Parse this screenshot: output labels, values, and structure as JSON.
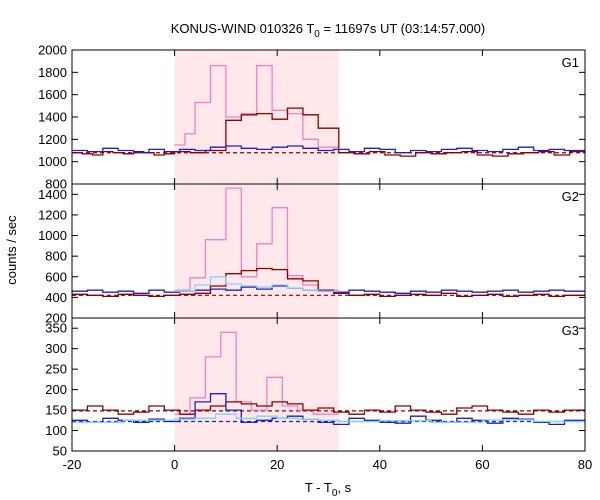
{
  "chart_data": {
    "type": "line",
    "title": {
      "prefix": "KONUS-WIND 010326 T",
      "sub": "0",
      "suffix": " = 11697s UT (03:14:57.000)"
    },
    "xlabel": {
      "prefix": "T - T",
      "sub": "0",
      "suffix": ", s"
    },
    "ylabel": "counts / sec",
    "xlim": [
      -20,
      80
    ],
    "xticks": [
      -20,
      0,
      20,
      40,
      60,
      80
    ],
    "highlight_interval": [
      0,
      32
    ],
    "colors": {
      "G1-G2": "#f080c8",
      "G2-G3": "#00008b",
      "G3-G4": "#c0392b",
      "G1 bg": "#8b0000",
      "G2 bg": "#b22222",
      "G3 bg": "#2020c0",
      "background": "#8b0000",
      "highlight": "#ffe8ea"
    },
    "panels": [
      {
        "label": "G1",
        "ylim": [
          800,
          2000
        ],
        "yticks": [
          800,
          1000,
          1200,
          1400,
          1600,
          1800,
          2000
        ],
        "background_level": 1080,
        "series": [
          {
            "color": "#f080c8",
            "step_edges": [
              0,
              2,
              4,
              7,
              10,
              13,
              16,
              19,
              22,
              25,
              28,
              32
            ],
            "values": [
              1150,
              1250,
              1530,
              1860,
              1400,
              1430,
              1860,
              1460,
              1430,
              1200,
              1130
            ]
          },
          {
            "color": "#8b0000",
            "step_edges": [
              -20,
              -18,
              -16,
              -14,
              -12,
              -10,
              -8,
              -6,
              -4,
              -2,
              0,
              3,
              6,
              10,
              13,
              16,
              19,
              22,
              25,
              28,
              32,
              35,
              38,
              41,
              44,
              47,
              50,
              53,
              56,
              59,
              62,
              65,
              68,
              71,
              74,
              77,
              80
            ],
            "values": [
              1080,
              1070,
              1060,
              1090,
              1080,
              1070,
              1090,
              1080,
              1060,
              1070,
              1090,
              1080,
              1100,
              1370,
              1420,
              1430,
              1380,
              1480,
              1420,
              1300,
              1080,
              1070,
              1090,
              1060,
              1050,
              1080,
              1070,
              1080,
              1090,
              1060,
              1050,
              1070,
              1080,
              1090,
              1060,
              1090
            ]
          },
          {
            "color": "#2020c0",
            "step_edges": [
              -20,
              -17,
              -14,
              -11,
              -8,
              -5,
              -2,
              1,
              4,
              7,
              10,
              13,
              16,
              19,
              22,
              25,
              28,
              31,
              34,
              37,
              40,
              43,
              46,
              49,
              52,
              55,
              58,
              61,
              64,
              67,
              70,
              73,
              76,
              80
            ],
            "values": [
              1100,
              1090,
              1120,
              1100,
              1080,
              1110,
              1090,
              1110,
              1100,
              1130,
              1140,
              1120,
              1110,
              1130,
              1140,
              1120,
              1100,
              1110,
              1090,
              1120,
              1110,
              1080,
              1100,
              1090,
              1110,
              1120,
              1100,
              1090,
              1110,
              1130,
              1100,
              1110,
              1100
            ]
          }
        ]
      },
      {
        "label": "G2",
        "ylim": [
          200,
          1500
        ],
        "yticks": [
          200,
          400,
          600,
          800,
          1000,
          1200,
          1400
        ],
        "background_level": 420,
        "series": [
          {
            "color": "#f080c8",
            "step_edges": [
              0,
              3,
              6,
              10,
              13,
              16,
              19,
              22,
              25,
              28,
              32
            ],
            "values": [
              470,
              590,
              960,
              1460,
              600,
              920,
              1270,
              610,
              520,
              470
            ]
          },
          {
            "color": "#8b0000",
            "step_edges": [
              -20,
              -17,
              -14,
              -11,
              -8,
              -5,
              -2,
              1,
              4,
              7,
              10,
              13,
              16,
              19,
              22,
              25,
              28,
              31,
              34,
              37,
              40,
              43,
              46,
              49,
              52,
              55,
              58,
              61,
              64,
              67,
              70,
              73,
              76,
              80
            ],
            "values": [
              430,
              420,
              410,
              430,
              420,
              410,
              420,
              430,
              440,
              510,
              630,
              660,
              680,
              670,
              580,
              560,
              470,
              440,
              420,
              430,
              410,
              420,
              430,
              420,
              440,
              410,
              420,
              430,
              410,
              420,
              430,
              410,
              420
            ]
          },
          {
            "color": "#2020c0",
            "step_edges": [
              -20,
              -17,
              -14,
              -11,
              -8,
              -5,
              -2,
              1,
              4,
              7,
              10,
              13,
              16,
              19,
              22,
              25,
              28,
              31,
              34,
              37,
              40,
              43,
              46,
              49,
              52,
              55,
              58,
              61,
              64,
              67,
              70,
              73,
              76,
              80
            ],
            "values": [
              460,
              470,
              450,
              460,
              440,
              470,
              450,
              460,
              470,
              480,
              470,
              500,
              480,
              510,
              490,
              470,
              460,
              450,
              470,
              460,
              450,
              440,
              460,
              450,
              470,
              460,
              450,
              460,
              470,
              450,
              460,
              470,
              460
            ]
          },
          {
            "color": "#80d0ff",
            "step_edges": [
              0,
              4,
              7,
              10,
              13,
              16,
              19,
              22,
              25,
              28,
              32
            ],
            "values": [
              460,
              520,
              600,
              530,
              510,
              500,
              520,
              490,
              470,
              460
            ]
          }
        ]
      },
      {
        "label": "G3",
        "ylim": [
          50,
          375
        ],
        "yticks": [
          50,
          100,
          150,
          200,
          250,
          300,
          350
        ],
        "background_level": 148,
        "background_level_2": 122,
        "series": [
          {
            "color": "#f080c8",
            "step_edges": [
              0,
              3,
              6,
              9,
              12,
              15,
              18,
              21,
              24,
              27,
              32
            ],
            "values": [
              140,
              180,
              280,
              340,
              170,
              150,
              230,
              160,
              150,
              140
            ]
          },
          {
            "color": "#8b0000",
            "step_edges": [
              -20,
              -17,
              -14,
              -11,
              -8,
              -5,
              -2,
              1,
              4,
              7,
              10,
              13,
              16,
              19,
              22,
              25,
              28,
              31,
              34,
              37,
              40,
              43,
              46,
              49,
              52,
              55,
              58,
              61,
              64,
              67,
              70,
              73,
              76,
              80
            ],
            "values": [
              150,
              160,
              150,
              140,
              145,
              160,
              150,
              140,
              150,
              160,
              170,
              165,
              160,
              170,
              165,
              150,
              155,
              145,
              140,
              150,
              145,
              160,
              150,
              145,
              140,
              155,
              160,
              150,
              145,
              140,
              150,
              145,
              150
            ]
          },
          {
            "color": "#2020c0",
            "step_edges": [
              -20,
              -17,
              -14,
              -11,
              -8,
              -5,
              -2,
              1,
              4,
              7,
              10,
              13,
              16,
              19,
              22,
              25,
              28,
              31,
              34,
              37,
              40,
              43,
              46,
              49,
              52,
              55,
              58,
              61,
              64,
              67,
              70,
              73,
              76,
              80
            ],
            "values": [
              125,
              120,
              130,
              125,
              120,
              128,
              122,
              130,
              170,
              190,
              150,
              120,
              125,
              130,
              135,
              128,
              120,
              115,
              130,
              125,
              120,
              118,
              135,
              125,
              120,
              130,
              125,
              118,
              130,
              128,
              120,
              115,
              125
            ]
          },
          {
            "color": "#80d0ff",
            "step_edges": [
              -20,
              -10,
              0,
              4,
              8,
              12,
              16,
              20,
              24,
              28,
              32,
              40,
              50,
              60,
              70,
              80
            ],
            "values": [
              120,
              125,
              128,
              130,
              140,
              130,
              135,
              130,
              128,
              125,
              122,
              124,
              120,
              126,
              122
            ]
          }
        ]
      }
    ]
  }
}
